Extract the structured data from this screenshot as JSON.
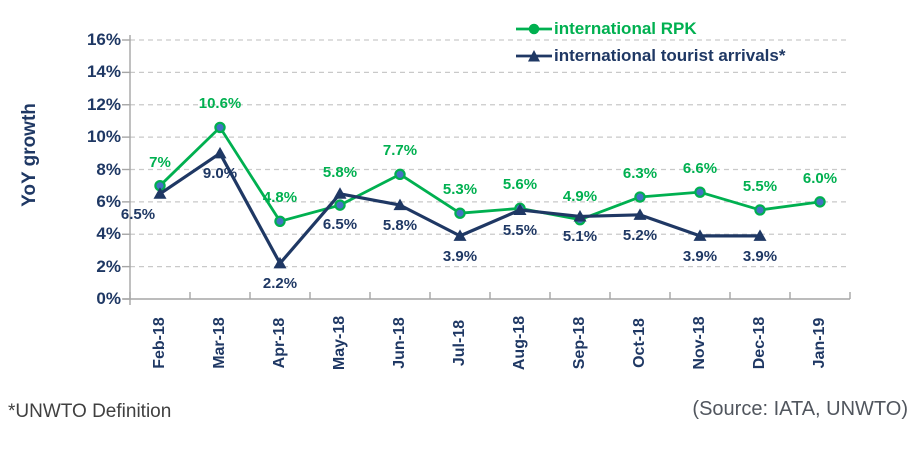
{
  "chart_data": {
    "type": "line",
    "categories": [
      "Feb-18",
      "Mar-18",
      "Apr-18",
      "May-18",
      "Jun-18",
      "Jul-18",
      "Aug-18",
      "Sep-18",
      "Oct-18",
      "Nov-18",
      "Dec-18",
      "Jan-19"
    ],
    "series": [
      {
        "name": "international RPK",
        "color": "#00B050",
        "marker": "circle",
        "marker_fill": "#4472C4",
        "values": [
          7.0,
          10.6,
          4.8,
          5.8,
          7.7,
          5.3,
          5.6,
          4.9,
          6.3,
          6.6,
          5.5,
          6.0
        ],
        "labels": [
          "7%",
          "10.6%",
          "4.8%",
          "5.8%",
          "7.7%",
          "5.3%",
          "5.6%",
          "4.9%",
          "6.3%",
          "6.6%",
          "5.5%",
          "6.0%"
        ],
        "label_position": "above"
      },
      {
        "name": "international tourist arrivals*",
        "color": "#1F3864",
        "marker": "triangle",
        "marker_fill": "#1F3864",
        "values": [
          6.5,
          9.0,
          2.2,
          6.5,
          5.8,
          3.9,
          5.5,
          5.1,
          5.2,
          3.9,
          3.9,
          null
        ],
        "labels": [
          "6.5%",
          "9.0%",
          "2.2%",
          "6.5%",
          "5.8%",
          "3.9%",
          "5.5%",
          "5.1%",
          "5.2%",
          "3.9%",
          "3.9%",
          ""
        ],
        "label_position": "below"
      }
    ],
    "label_offset_overrides": [
      {
        "series": 0,
        "index": 3,
        "dy": -41
      },
      {
        "series": 1,
        "index": 0,
        "dx": -22
      },
      {
        "series": 1,
        "index": 3,
        "dy": 22
      }
    ],
    "title": "",
    "xlabel": "",
    "ylabel": "YoY growth",
    "ylim": [
      0,
      16
    ],
    "ytick_step": 2,
    "ytick_labels": [
      "0%",
      "2%",
      "4%",
      "6%",
      "8%",
      "10%",
      "12%",
      "14%",
      "16%"
    ],
    "grid": "horizontal-dashed",
    "legend_position": "top-right"
  },
  "footnote": {
    "text": "*UNWTO Definition"
  },
  "source": {
    "text": "(Source: IATA, UNWTO)"
  },
  "colors": {
    "gridline": "#C9C9C9",
    "axis": "#A6A6A6",
    "tick_label": "#1F3864",
    "footnote": "#404040",
    "source": "#51565E"
  }
}
